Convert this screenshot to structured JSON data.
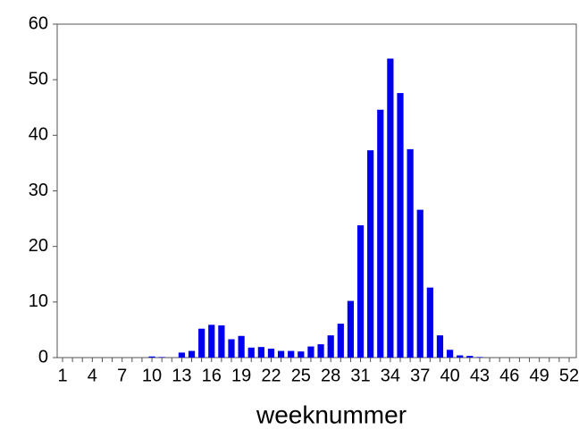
{
  "chart_data": {
    "type": "bar",
    "x_label": "weeknummer",
    "categories": [
      "1",
      null,
      null,
      "4",
      null,
      null,
      "7",
      null,
      null,
      "10",
      null,
      null,
      "13",
      null,
      null,
      "16",
      null,
      null,
      "19",
      null,
      null,
      "22",
      null,
      null,
      "25",
      null,
      null,
      "28",
      null,
      null,
      "31",
      null,
      null,
      "34",
      null,
      null,
      "37",
      null,
      null,
      "40",
      null,
      null,
      "43",
      null,
      null,
      "46",
      null,
      null,
      "49",
      null,
      null,
      "52"
    ],
    "values": [
      0,
      0,
      0,
      0,
      0,
      0,
      0,
      0,
      0,
      0.2,
      0.1,
      0,
      0.9,
      1.2,
      5.2,
      5.9,
      5.8,
      3.3,
      3.9,
      1.8,
      1.9,
      1.6,
      1.2,
      1.2,
      1.1,
      2.0,
      2.4,
      4.0,
      6.1,
      10.2,
      23.8,
      37.3,
      44.6,
      53.8,
      47.6,
      37.5,
      26.6,
      12.6,
      4.0,
      1.4,
      0.4,
      0.3,
      0.1,
      0,
      0,
      0,
      0,
      0,
      0,
      0,
      0,
      0
    ],
    "color": "#0000ee",
    "ylim": [
      0,
      60
    ],
    "yticks": [
      0,
      10,
      20,
      30,
      40,
      50,
      60
    ],
    "grid": false
  }
}
